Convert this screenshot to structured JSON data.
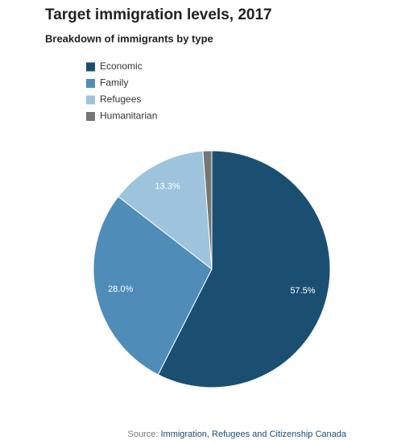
{
  "chart_data": {
    "type": "pie",
    "title": "Target immigration levels, 2017",
    "subtitle": "Breakdown of immigrants by type",
    "categories": [
      "Economic",
      "Family",
      "Refugees",
      "Humanitarian"
    ],
    "values": [
      57.5,
      28.0,
      13.3,
      1.2
    ],
    "value_labels": [
      "57.5%",
      "28.0%",
      "13.3%",
      null
    ],
    "colors": [
      "#1a4f72",
      "#4f8db8",
      "#9ec4dd",
      "#767676"
    ],
    "source_label": "Source:",
    "source": "Immigration, Refugees and Citizenship Canada"
  }
}
